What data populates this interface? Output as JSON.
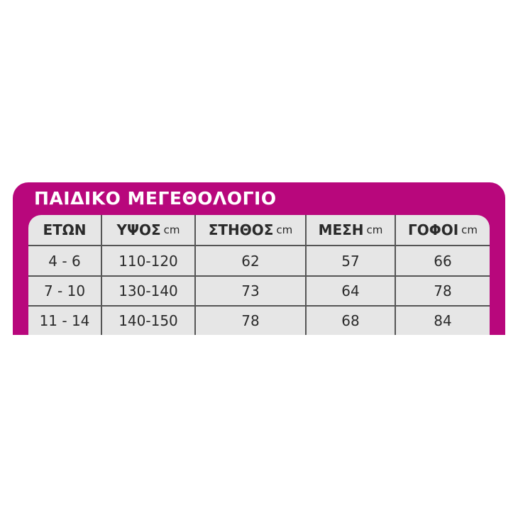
{
  "title": "ΠΑΙΔΙΚΟ ΜΕΓΕΘΟΛΟΓΙΟ",
  "colors": {
    "accent": "#b8077c",
    "table_bg": "#e6e6e6"
  },
  "headers": [
    {
      "label": "ΕΤΩΝ",
      "unit": ""
    },
    {
      "label": "ΥΨΟΣ",
      "unit": "cm"
    },
    {
      "label": "ΣΤΗΘΟΣ",
      "unit": "cm"
    },
    {
      "label": "ΜΕΣΗ",
      "unit": "cm"
    },
    {
      "label": "ΓΟΦΟΙ",
      "unit": "cm"
    }
  ],
  "rows": [
    [
      "4 - 6",
      "110-120",
      "62",
      "57",
      "66"
    ],
    [
      "7 - 10",
      "130-140",
      "73",
      "64",
      "78"
    ],
    [
      "11 - 14",
      "140-150",
      "78",
      "68",
      "84"
    ]
  ]
}
